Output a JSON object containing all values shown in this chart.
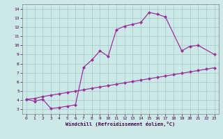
{
  "xlabel": "Windchill (Refroidissement éolien,°C)",
  "line1_x": [
    0,
    1,
    2,
    3,
    4,
    5,
    6,
    7,
    8,
    9,
    10,
    11,
    12,
    13,
    14,
    15,
    16,
    17,
    19,
    20,
    21,
    23
  ],
  "line1_y": [
    4.1,
    3.9,
    4.1,
    3.1,
    3.2,
    3.35,
    3.5,
    7.6,
    8.4,
    9.4,
    8.8,
    11.7,
    12.1,
    12.3,
    12.5,
    13.6,
    13.4,
    13.1,
    9.4,
    9.9,
    10.0,
    9.0
  ],
  "line2_x": [
    0,
    1,
    2,
    3,
    4,
    5,
    6,
    7,
    8,
    9,
    10,
    11,
    12,
    13,
    14,
    15,
    16,
    17,
    18,
    19,
    20,
    21,
    22,
    23
  ],
  "line2_y": [
    4.1,
    4.2,
    4.4,
    4.55,
    4.7,
    4.85,
    5.0,
    5.15,
    5.3,
    5.45,
    5.6,
    5.75,
    5.9,
    6.05,
    6.2,
    6.35,
    6.5,
    6.65,
    6.8,
    6.95,
    7.1,
    7.25,
    7.4,
    7.55
  ],
  "line_color": "#993399",
  "marker": "D",
  "markersize": 2.0,
  "linewidth": 0.9,
  "bg_color": "#cce8e8",
  "grid_color": "#aacccc",
  "xmin": -0.5,
  "xmax": 23.5,
  "ymin": 2.5,
  "ymax": 14.5,
  "yticks": [
    3,
    4,
    5,
    6,
    7,
    8,
    9,
    10,
    11,
    12,
    13,
    14
  ],
  "xticks": [
    0,
    1,
    2,
    3,
    4,
    5,
    6,
    7,
    8,
    9,
    10,
    11,
    12,
    13,
    14,
    15,
    16,
    17,
    18,
    19,
    20,
    21,
    22,
    23
  ]
}
